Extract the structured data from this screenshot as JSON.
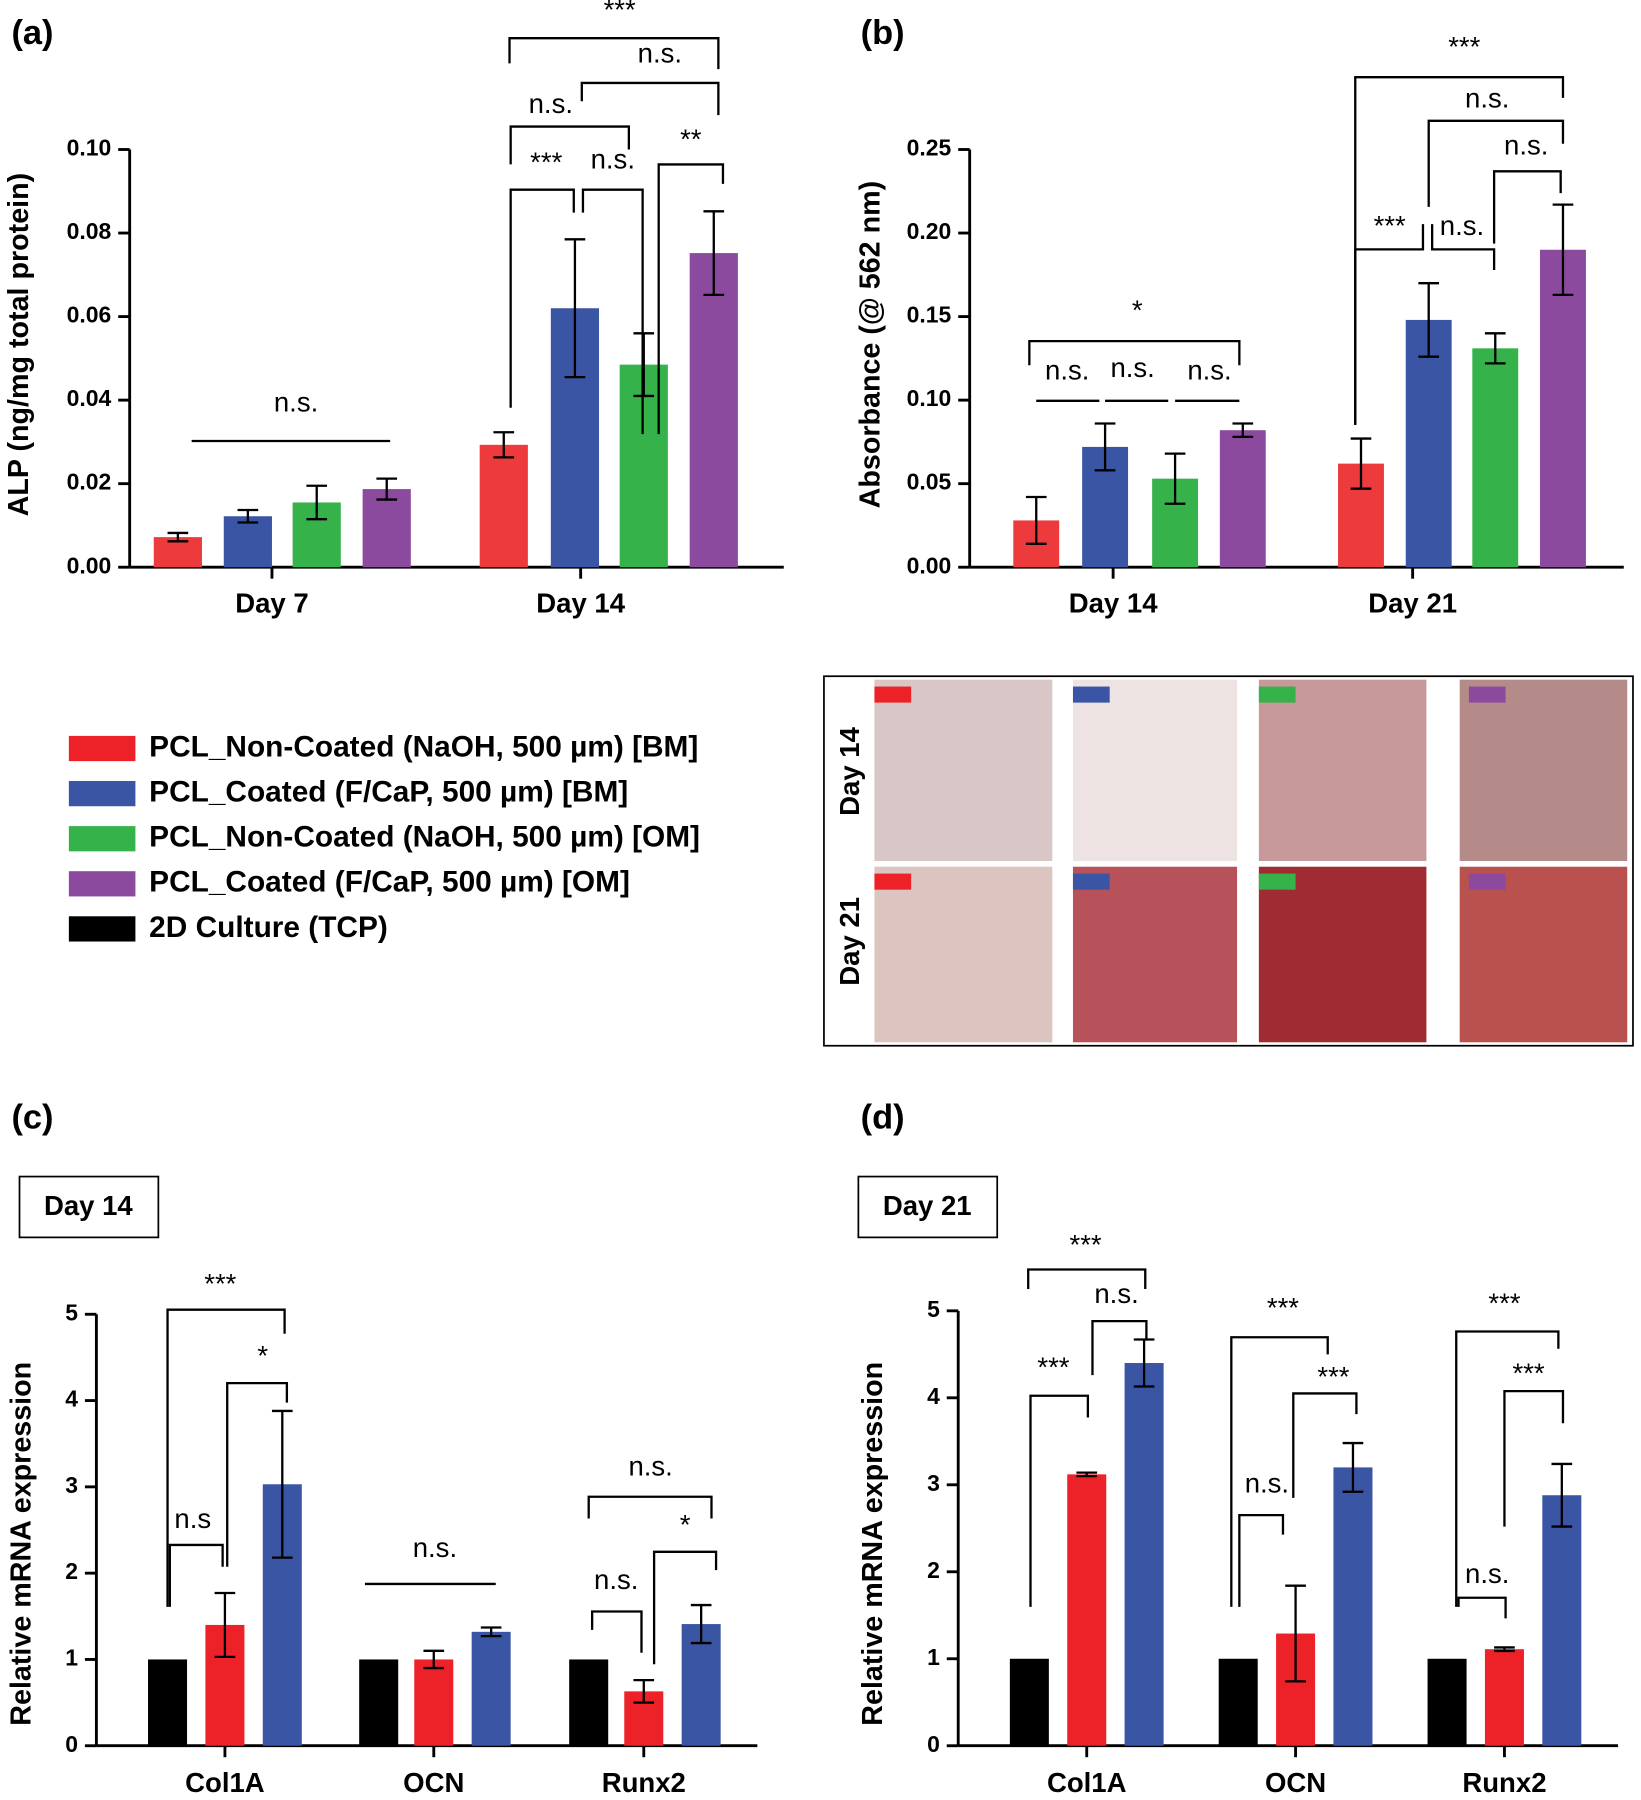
{
  "chart_data": [
    {
      "type": "bar",
      "panel_label": "(a)",
      "y_label": "ALP (ng/mg total protein)",
      "categories": [
        "Day 7",
        "Day 14"
      ],
      "series": [
        {
          "color": "#ed3a3c",
          "values": [
            0.0072,
            0.0293
          ],
          "errors": [
            0.001,
            0.003
          ]
        },
        {
          "color": "#3a55a4",
          "values": [
            0.0122,
            0.062
          ],
          "errors": [
            0.0015,
            0.0165
          ]
        },
        {
          "color": "#36b24a",
          "values": [
            0.0155,
            0.0485
          ],
          "errors": [
            0.004,
            0.0075
          ]
        },
        {
          "color": "#8b4a9e",
          "values": [
            0.0187,
            0.0752
          ],
          "errors": [
            0.0025,
            0.01
          ]
        }
      ],
      "ylim": [
        0,
        0.1
      ],
      "yticks": [
        {
          "value": 0,
          "label": "0.00"
        },
        0.02,
        0.04,
        0.06,
        0.08,
        {
          "value": 0.1,
          "label": "0.10"
        }
      ],
      "annotations": [
        "n.s.",
        "***",
        "n.s.",
        "**",
        "n.s.",
        "n.s.",
        "***"
      ]
    },
    {
      "type": "bar",
      "panel_label": "(b)",
      "y_label": "Absorbance (@ 562 nm)",
      "categories": [
        "Day 14",
        "Day 21"
      ],
      "series": [
        {
          "color": "#ed3a3c",
          "values": [
            0.028,
            0.062
          ],
          "errors": [
            0.014,
            0.015
          ]
        },
        {
          "color": "#3a55a4",
          "values": [
            0.072,
            0.148
          ],
          "errors": [
            0.014,
            0.022
          ]
        },
        {
          "color": "#36b24a",
          "values": [
            0.053,
            0.131
          ],
          "errors": [
            0.015,
            0.009
          ]
        },
        {
          "color": "#8b4a9e",
          "values": [
            0.082,
            0.19
          ],
          "errors": [
            0.004,
            0.027
          ]
        }
      ],
      "ylim": [
        0,
        0.25
      ],
      "yticks": [
        {
          "value": 0,
          "label": "0.00"
        },
        0.05,
        {
          "value": 0.1,
          "label": "0.10"
        },
        0.15,
        {
          "value": 0.2,
          "label": "0.20"
        },
        0.25
      ],
      "annotations": [
        "*",
        "n.s.",
        "n.s.",
        "n.s.",
        "***",
        "n.s.",
        "n.s.",
        "n.s.",
        "***"
      ]
    },
    {
      "type": "bar",
      "panel_label": "(c)",
      "inset_label": "Day 14",
      "y_label": "Relative mRNA expression",
      "categories": [
        "Col1A",
        "OCN",
        "Runx2"
      ],
      "series": [
        {
          "color": "#000000",
          "values": [
            1,
            1,
            1
          ]
        },
        {
          "color": "#ed2228",
          "values": [
            1.4,
            1.0,
            0.63
          ],
          "errors": [
            0.37,
            0.1,
            0.13
          ]
        },
        {
          "color": "#3a55a4",
          "values": [
            3.03,
            1.32,
            1.41
          ],
          "errors": [
            0.85,
            0.05,
            0.22
          ]
        }
      ],
      "ylim": [
        0,
        5
      ],
      "yticks": [
        0,
        1,
        2,
        3,
        4,
        5
      ],
      "annotations": [
        "***",
        "*",
        "n.s",
        "n.s.",
        "n.s.",
        "*",
        "n.s."
      ]
    },
    {
      "type": "bar",
      "panel_label": "(d)",
      "inset_label": "Day 21",
      "y_label": "Relative mRNA expression",
      "categories": [
        "Col1A",
        "OCN",
        "Runx2"
      ],
      "series": [
        {
          "color": "#000000",
          "values": [
            1,
            1,
            1
          ]
        },
        {
          "color": "#ed2228",
          "values": [
            3.12,
            1.29,
            1.11
          ],
          "errors": [
            0.02,
            0.55,
            0.02
          ]
        },
        {
          "color": "#3a55a4",
          "values": [
            4.4,
            3.2,
            2.88
          ],
          "errors": [
            0.27,
            0.28,
            0.36
          ]
        }
      ],
      "ylim": [
        0,
        5
      ],
      "yticks": [
        0,
        1,
        2,
        3,
        4,
        5
      ],
      "annotations": [
        "***",
        "n.s.",
        "***",
        "***",
        "***",
        "n.s.",
        "***",
        "***",
        "n.s."
      ]
    }
  ],
  "legend": [
    {
      "label": "PCL_Non-Coated (NaOH, 500 µm) [BM]",
      "color": "#ed2228"
    },
    {
      "label": "PCL_Coated (F/CaP, 500 µm) [BM]",
      "color": "#3a55a4"
    },
    {
      "label": "PCL_Non-Coated (NaOH, 500 µm) [OM]",
      "color": "#36b24a"
    },
    {
      "label": "PCL_Coated (F/CaP, 500 µm) [OM]",
      "color": "#8b4a9e"
    },
    {
      "label": "2D Culture (TCP)",
      "color": "#000000"
    }
  ],
  "photo_panel": {
    "rows": [
      "Day 14",
      "Day 21"
    ]
  }
}
